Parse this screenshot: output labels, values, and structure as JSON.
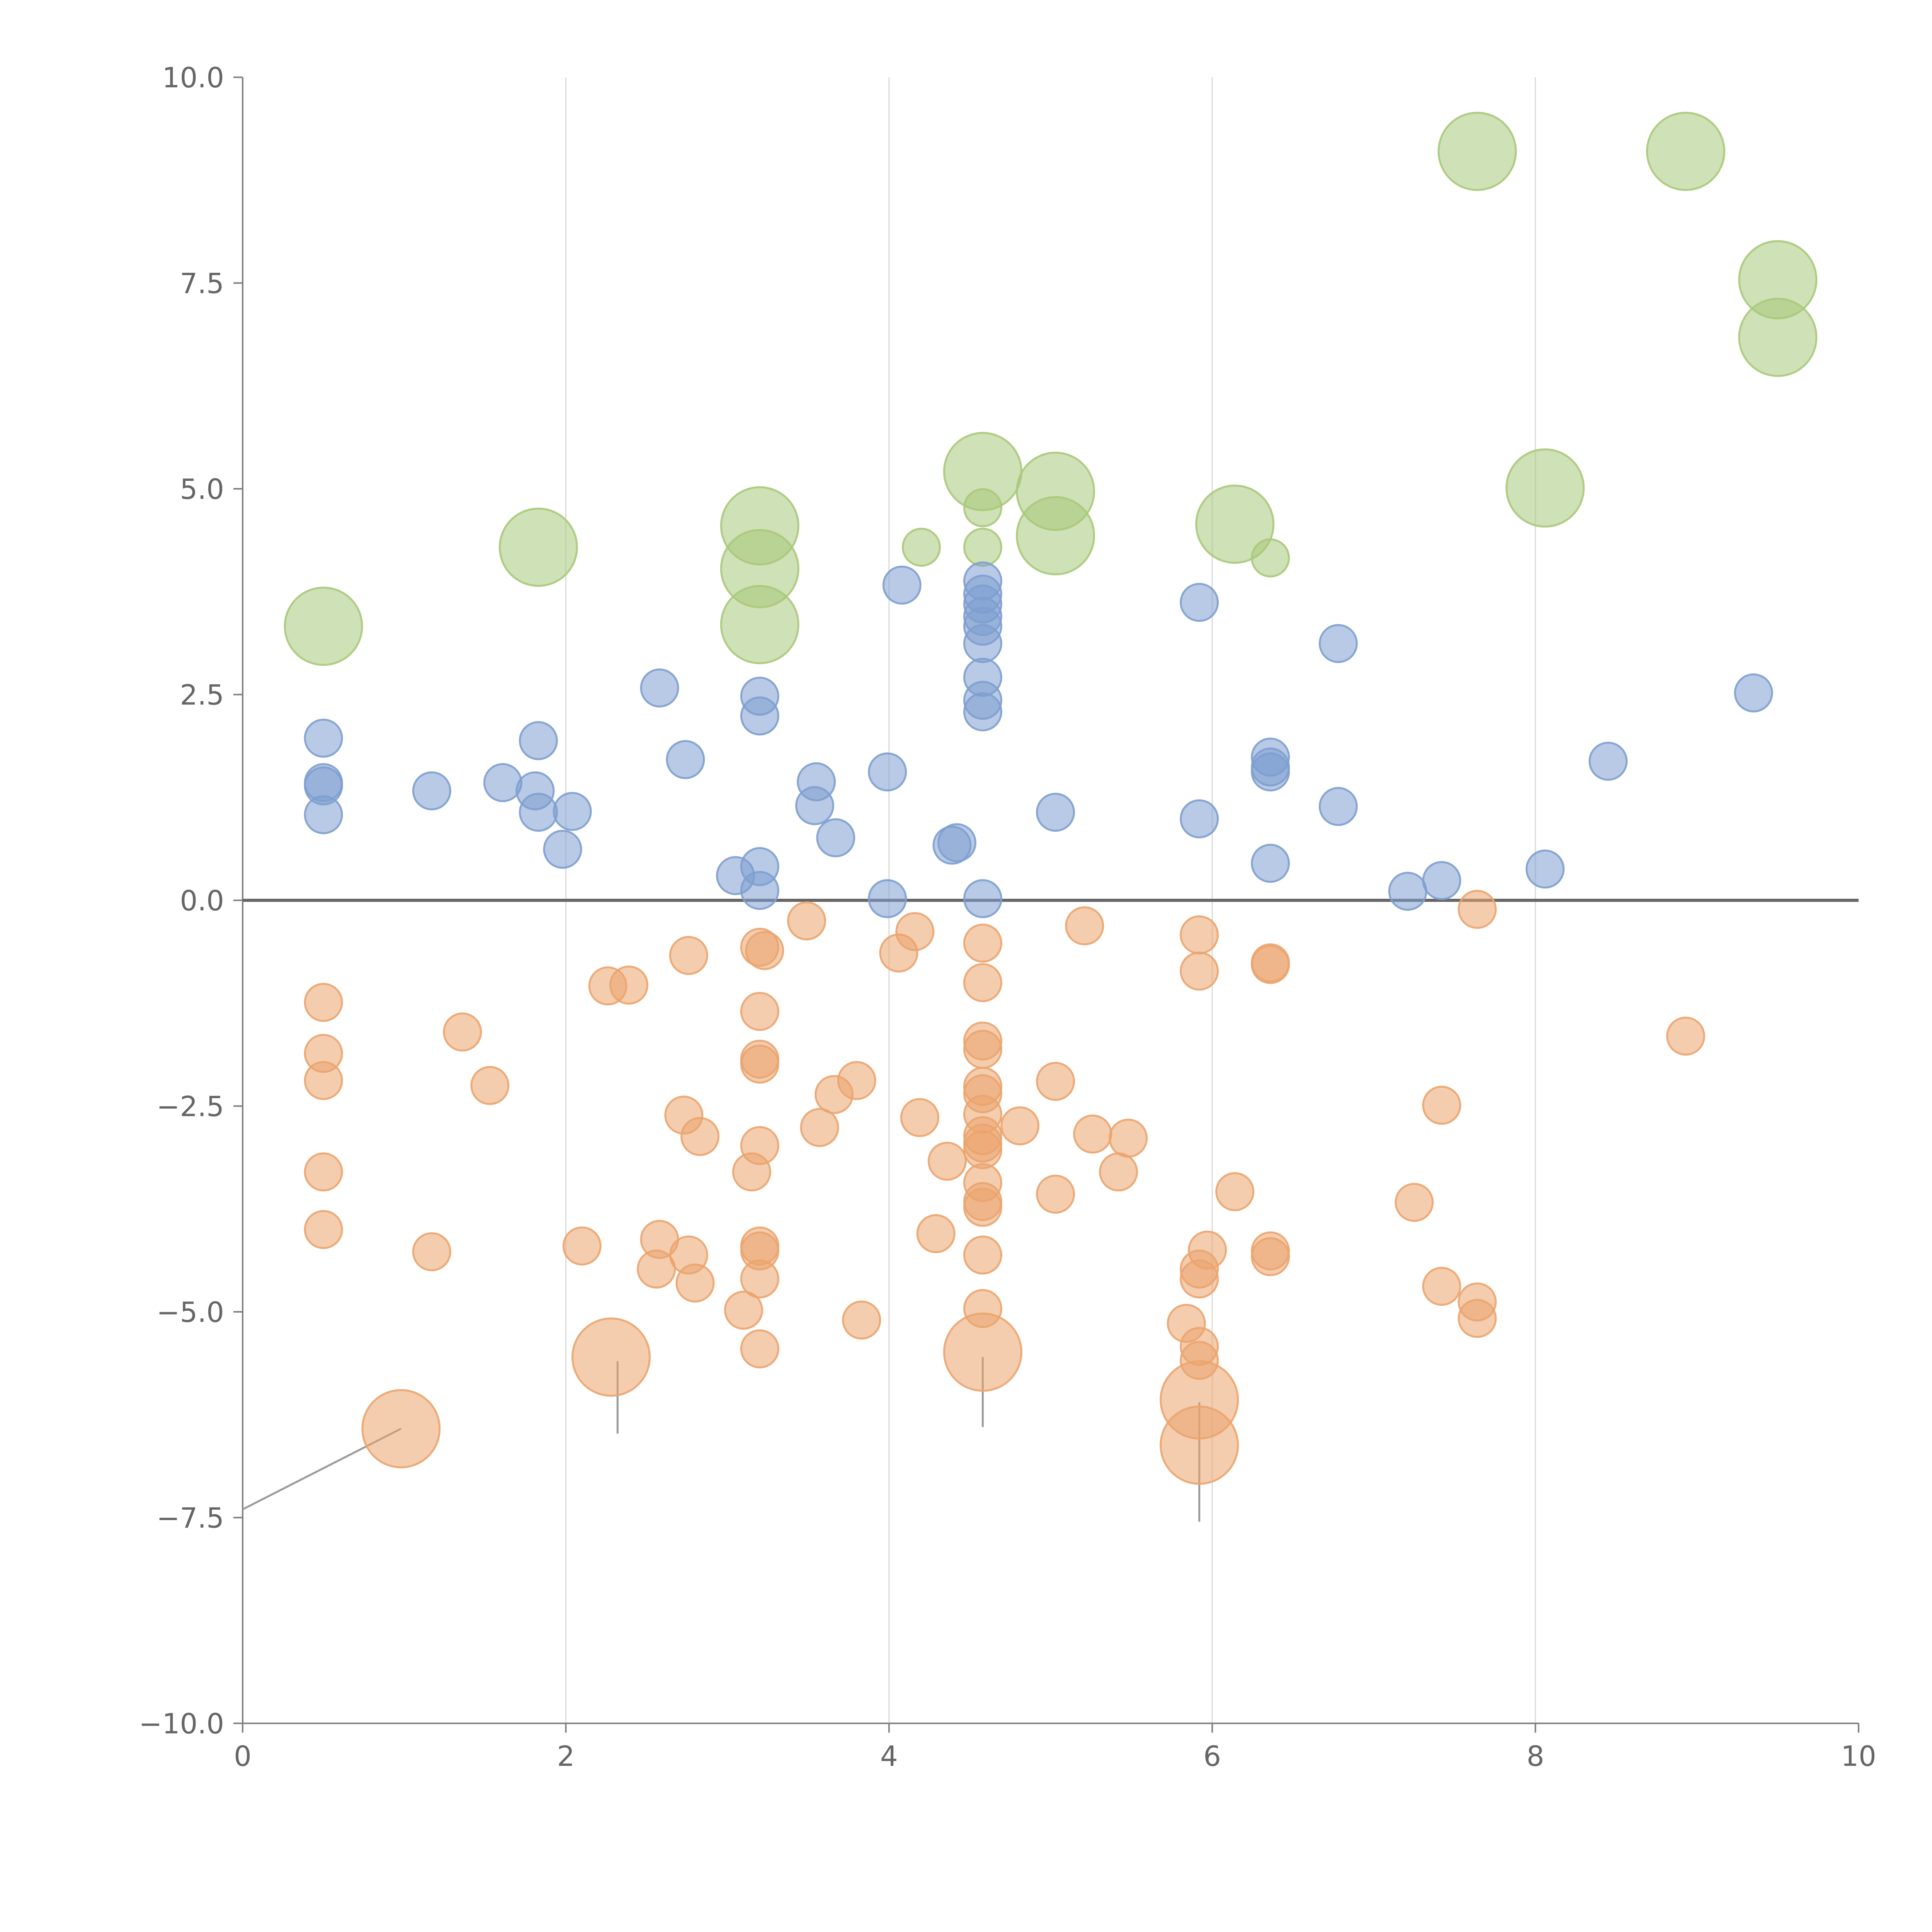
{
  "chart_data": {
    "type": "scatter",
    "title": "",
    "xlabel": "",
    "ylabel": "",
    "xlim": [
      0,
      10
    ],
    "ylim": [
      -10,
      10
    ],
    "x_ticks": [
      0,
      2,
      4,
      6,
      8,
      10
    ],
    "x_tick_labels": [
      "0",
      "2",
      "4",
      "6",
      "8",
      "10"
    ],
    "y_ticks": [
      10,
      7.5,
      5,
      2.5,
      0,
      -2.5,
      -5,
      -7.5,
      -10
    ],
    "y_tick_labels": [
      "10.0",
      "7.5",
      "5.0",
      "2.5",
      "0.0",
      "−2.5",
      "−5.0",
      "−7.5",
      "−10.0"
    ],
    "vertical_grid_at": [
      2,
      4,
      6,
      8
    ],
    "zero_line": 0,
    "colors": {
      "green": "#a8c97a",
      "blue": "#7e9fd0",
      "orange": "#eba46e"
    },
    "series": [
      {
        "name": "green",
        "size": "large",
        "points": [
          [
            0.5,
            3.33
          ],
          [
            1.83,
            4.29
          ],
          [
            3.2,
            4.55
          ],
          [
            3.2,
            4.03
          ],
          [
            3.2,
            3.35
          ],
          [
            4.58,
            5.21
          ],
          [
            5.03,
            4.97
          ],
          [
            5.03,
            4.43
          ],
          [
            6.14,
            4.57
          ],
          [
            7.64,
            9.1
          ],
          [
            8.93,
            9.1
          ],
          [
            9.5,
            7.54
          ],
          [
            9.5,
            6.84
          ],
          [
            8.06,
            5.01
          ]
        ]
      },
      {
        "name": "green",
        "size": "small",
        "points": [
          [
            4.58,
            4.77
          ],
          [
            4.58,
            4.29
          ],
          [
            4.2,
            4.29
          ],
          [
            6.36,
            4.16
          ]
        ]
      },
      {
        "name": "blue",
        "size": "small",
        "points": [
          [
            0.5,
            1.97
          ],
          [
            0.5,
            1.43
          ],
          [
            0.5,
            1.39
          ],
          [
            0.5,
            1.04
          ],
          [
            1.17,
            1.33
          ],
          [
            1.61,
            1.43
          ],
          [
            1.81,
            1.33
          ],
          [
            1.83,
            1.94
          ],
          [
            1.83,
            1.07
          ],
          [
            2.04,
            1.08
          ],
          [
            1.98,
            0.62
          ],
          [
            2.58,
            2.58
          ],
          [
            2.74,
            1.71
          ],
          [
            3.05,
            0.3
          ],
          [
            3.2,
            2.48
          ],
          [
            3.2,
            2.24
          ],
          [
            3.2,
            0.41
          ],
          [
            3.2,
            0.12
          ],
          [
            3.55,
            1.44
          ],
          [
            3.54,
            1.15
          ],
          [
            3.67,
            0.76
          ],
          [
            3.99,
            1.56
          ],
          [
            3.99,
            0.02
          ],
          [
            4.08,
            3.83
          ],
          [
            4.39,
            0.67
          ],
          [
            4.42,
            0.7
          ],
          [
            4.58,
            3.88
          ],
          [
            4.58,
            3.72
          ],
          [
            4.58,
            3.6
          ],
          [
            4.58,
            3.45
          ],
          [
            4.58,
            3.33
          ],
          [
            4.58,
            3.12
          ],
          [
            4.58,
            2.71
          ],
          [
            4.58,
            2.43
          ],
          [
            4.58,
            2.29
          ],
          [
            4.58,
            0.02
          ],
          [
            5.03,
            1.07
          ],
          [
            5.92,
            3.62
          ],
          [
            5.92,
            0.99
          ],
          [
            6.36,
            1.74
          ],
          [
            6.36,
            1.62
          ],
          [
            6.36,
            1.56
          ],
          [
            6.36,
            0.45
          ],
          [
            6.78,
            3.12
          ],
          [
            6.78,
            1.14
          ],
          [
            7.21,
            0.11
          ],
          [
            7.42,
            0.24
          ],
          [
            8.06,
            0.38
          ],
          [
            8.45,
            1.69
          ],
          [
            9.35,
            2.52
          ]
        ]
      },
      {
        "name": "orange",
        "size": "small",
        "points": [
          [
            0.5,
            -1.24
          ],
          [
            0.5,
            -1.86
          ],
          [
            0.5,
            -2.19
          ],
          [
            0.5,
            -3.3
          ],
          [
            0.5,
            -4.0
          ],
          [
            1.17,
            -4.27
          ],
          [
            1.36,
            -1.6
          ],
          [
            1.53,
            -2.25
          ],
          [
            2.1,
            -4.2
          ],
          [
            2.26,
            -1.04
          ],
          [
            2.39,
            -1.03
          ],
          [
            2.56,
            -4.48
          ],
          [
            2.58,
            -4.12
          ],
          [
            2.73,
            -2.61
          ],
          [
            2.76,
            -0.67
          ],
          [
            2.76,
            -4.31
          ],
          [
            2.8,
            -4.65
          ],
          [
            2.83,
            -2.87
          ],
          [
            3.1,
            -4.98
          ],
          [
            3.15,
            -3.3
          ],
          [
            3.2,
            -0.57
          ],
          [
            3.2,
            -1.35
          ],
          [
            3.2,
            -1.93
          ],
          [
            3.2,
            -1.99
          ],
          [
            3.2,
            -2.98
          ],
          [
            3.2,
            -4.2
          ],
          [
            3.2,
            -4.26
          ],
          [
            3.2,
            -4.6
          ],
          [
            3.2,
            -5.45
          ],
          [
            3.23,
            -0.61
          ],
          [
            3.49,
            -0.25
          ],
          [
            3.57,
            -2.76
          ],
          [
            3.66,
            -2.36
          ],
          [
            3.8,
            -2.19
          ],
          [
            3.83,
            -5.1
          ],
          [
            4.06,
            -0.64
          ],
          [
            4.16,
            -0.38
          ],
          [
            4.19,
            -2.64
          ],
          [
            4.29,
            -4.05
          ],
          [
            4.36,
            -3.17
          ],
          [
            4.58,
            -0.52
          ],
          [
            4.58,
            -1.0
          ],
          [
            4.58,
            -1.71
          ],
          [
            4.58,
            -1.81
          ],
          [
            4.58,
            -2.26
          ],
          [
            4.58,
            -2.35
          ],
          [
            4.58,
            -2.6
          ],
          [
            4.58,
            -2.86
          ],
          [
            4.58,
            -2.95
          ],
          [
            4.58,
            -3.03
          ],
          [
            4.58,
            -3.43
          ],
          [
            4.58,
            -3.66
          ],
          [
            4.58,
            -3.73
          ],
          [
            4.58,
            -4.31
          ],
          [
            4.58,
            -4.96
          ],
          [
            4.81,
            -2.74
          ],
          [
            5.03,
            -2.2
          ],
          [
            5.03,
            -3.57
          ],
          [
            5.21,
            -0.31
          ],
          [
            5.26,
            -2.84
          ],
          [
            5.42,
            -3.3
          ],
          [
            5.48,
            -2.89
          ],
          [
            5.84,
            -5.14
          ],
          [
            5.92,
            -0.42
          ],
          [
            5.92,
            -0.86
          ],
          [
            5.92,
            -4.48
          ],
          [
            5.92,
            -4.6
          ],
          [
            5.92,
            -5.42
          ],
          [
            5.92,
            -5.59
          ],
          [
            5.97,
            -4.25
          ],
          [
            6.14,
            -3.54
          ],
          [
            6.36,
            -0.76
          ],
          [
            6.36,
            -0.78
          ],
          [
            6.36,
            -4.26
          ],
          [
            6.36,
            -4.33
          ],
          [
            7.25,
            -3.67
          ],
          [
            7.42,
            -2.49
          ],
          [
            7.42,
            -4.69
          ],
          [
            7.64,
            -0.11
          ],
          [
            7.64,
            -4.88
          ],
          [
            7.64,
            -5.08
          ],
          [
            8.93,
            -1.65
          ]
        ]
      },
      {
        "name": "orange",
        "size": "large",
        "points": [
          [
            0.98,
            -6.42
          ],
          [
            2.28,
            -5.55
          ],
          [
            4.58,
            -5.49
          ],
          [
            5.92,
            -6.07
          ],
          [
            5.92,
            -6.62
          ]
        ]
      }
    ],
    "annotations": [
      {
        "from": [
          0.98,
          -6.42
        ],
        "to": [
          0.0,
          -7.4
        ],
        "type": "leader-line"
      },
      {
        "from": [
          2.32,
          -5.6
        ],
        "to": [
          2.32,
          -6.48
        ],
        "type": "leader-line"
      },
      {
        "from": [
          4.58,
          -5.55
        ],
        "to": [
          4.58,
          -6.4
        ],
        "type": "leader-line"
      },
      {
        "from": [
          5.92,
          -6.1
        ],
        "to": [
          5.92,
          -7.55
        ],
        "type": "leader-line"
      }
    ]
  }
}
